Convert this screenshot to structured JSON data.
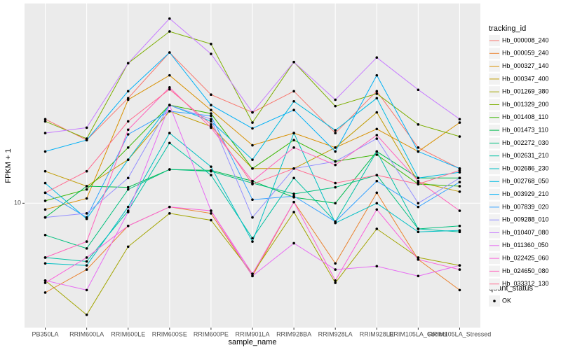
{
  "chart_data": {
    "type": "line",
    "x_label": "sample_name",
    "y_label": "FPKM + 1",
    "log_scale": true,
    "grid": true,
    "legend_position": "right",
    "legend_title": "tracking_id",
    "point_legend": {
      "title": "quant_status",
      "labels": [
        "OK"
      ],
      "color": "#000000"
    },
    "categories": [
      "PB350LA",
      "RRIM600LA",
      "RRIM600LE",
      "RRIM600SE",
      "RRIM600PE",
      "RRIM901LA",
      "RRIM928BA",
      "RRIM928LA",
      "RRIM928LE",
      "RRIM105LA_Control",
      "RRIM105LA_Stressed"
    ],
    "ylim": [
      3.6,
      51.6
    ],
    "yticks": [
      10
    ],
    "series": [
      {
        "name": "Hb_000008_240",
        "color": "#F8766D",
        "values": [
          19.95,
          16.8,
          23.7,
          34.5,
          24.4,
          21.1,
          25.1,
          17.8,
          25.1,
          15.8,
          13.3
        ]
      },
      {
        "name": "Hb_000059_240",
        "color": "#EA8331",
        "values": [
          4.8,
          5.8,
          8.3,
          9.7,
          9.2,
          5.5,
          10.1,
          6.1,
          10.9,
          6.3,
          4.9
        ]
      },
      {
        "name": "Hb_000327_140",
        "color": "#D89000",
        "values": [
          9.5,
          10.4,
          23.4,
          28.6,
          21.5,
          16.1,
          17.8,
          15.8,
          18.4,
          15.3,
          19.4
        ]
      },
      {
        "name": "Hb_000347_400",
        "color": "#C09B00",
        "values": [
          13.0,
          11.5,
          14.3,
          21.3,
          18.8,
          13.3,
          13.3,
          15.8,
          21.1,
          11.9,
          11.0
        ]
      },
      {
        "name": "Hb_001269_380",
        "color": "#A3A500",
        "values": [
          5.3,
          4.0,
          7.0,
          9.2,
          8.7,
          5.6,
          9.3,
          5.2,
          8.1,
          6.4,
          6.0
        ]
      },
      {
        "name": "Hb_001329_200",
        "color": "#7CAE00",
        "values": [
          19.6,
          17.0,
          31.6,
          41.0,
          37.0,
          19.4,
          31.9,
          22.2,
          24.6,
          19.1,
          17.3
        ]
      },
      {
        "name": "Hb_001408_110",
        "color": "#39B600",
        "values": [
          10.2,
          11.2,
          15.8,
          22.4,
          20.9,
          13.3,
          16.8,
          14.1,
          14.9,
          11.7,
          11.5
        ]
      },
      {
        "name": "Hb_001473_110",
        "color": "#00BB4E",
        "values": [
          8.9,
          11.5,
          11.4,
          13.2,
          13.1,
          12.0,
          10.5,
          10,
          15.3,
          12.3,
          12.3
        ]
      },
      {
        "name": "Hb_002272_030",
        "color": "#00BF7D",
        "values": [
          7.7,
          6.9,
          11.2,
          13.2,
          13.0,
          11.8,
          10.8,
          11.4,
          12.6,
          8.1,
          8.3
        ]
      },
      {
        "name": "Hb_002631_210",
        "color": "#00C1A3",
        "values": [
          6.4,
          6.2,
          9.4,
          16.4,
          12.6,
          7.5,
          12.3,
          8.6,
          15.3,
          8.1,
          7.9
        ]
      },
      {
        "name": "Hb_002686_230",
        "color": "#00BFC4",
        "values": [
          6.1,
          6.0,
          9.7,
          17.8,
          13.5,
          7.3,
          17.8,
          8.5,
          10,
          7.9,
          8.0
        ]
      },
      {
        "name": "Hb_002768_050",
        "color": "#00BAE0",
        "values": [
          11.8,
          8.8,
          14.3,
          22.4,
          19.6,
          14.3,
          23.1,
          18.2,
          23.7,
          12.3,
          12.9
        ]
      },
      {
        "name": "Hb_003929_210",
        "color": "#00B0F6",
        "values": [
          15.3,
          16.8,
          25.1,
          34.5,
          22.4,
          18.5,
          21.5,
          15.3,
          28.6,
          15.3,
          13.3
        ]
      },
      {
        "name": "Hb_007839_020",
        "color": "#35A2FF",
        "values": [
          10.9,
          8.9,
          17.6,
          21.3,
          20.5,
          10.3,
          10.6,
          8.6,
          12.0,
          9.7,
          11.9
        ]
      },
      {
        "name": "Hb_009288_010",
        "color": "#9590FF",
        "values": [
          8.9,
          9.2,
          12.3,
          22.4,
          19.95,
          8.9,
          13.3,
          14.1,
          17.0,
          10,
          12.3
        ]
      },
      {
        "name": "Hb_010407_080",
        "color": "#C77CFF",
        "values": [
          17.8,
          18.6,
          31.6,
          45.6,
          34.1,
          21.1,
          31.9,
          23.4,
          33.1,
          25.4,
          19.95
        ]
      },
      {
        "name": "Hb_011360_050",
        "color": "#E76BF3",
        "values": [
          5.3,
          4.9,
          9.3,
          22.4,
          9.4,
          5.5,
          7.2,
          5.8,
          5.96,
          5.5,
          6.0
        ]
      },
      {
        "name": "Hb_022425_060",
        "color": "#FA62DB",
        "values": [
          5.2,
          6.4,
          8.3,
          9.7,
          9.4,
          5.6,
          10.1,
          5.3,
          9.5,
          6.3,
          5.8
        ]
      },
      {
        "name": "Hb_024650_080",
        "color": "#FF62BC",
        "values": [
          6.4,
          7.3,
          18.3,
          25.9,
          18.6,
          12.0,
          15.8,
          13.7,
          17.5,
          12.0,
          9.4
        ]
      },
      {
        "name": "Hb_033312_130",
        "color": "#FF6C91",
        "values": [
          10.9,
          13.0,
          19.6,
          25.5,
          19.1,
          11.7,
          13.3,
          11.8,
          12.6,
          11.7,
          13.1
        ]
      }
    ]
  }
}
